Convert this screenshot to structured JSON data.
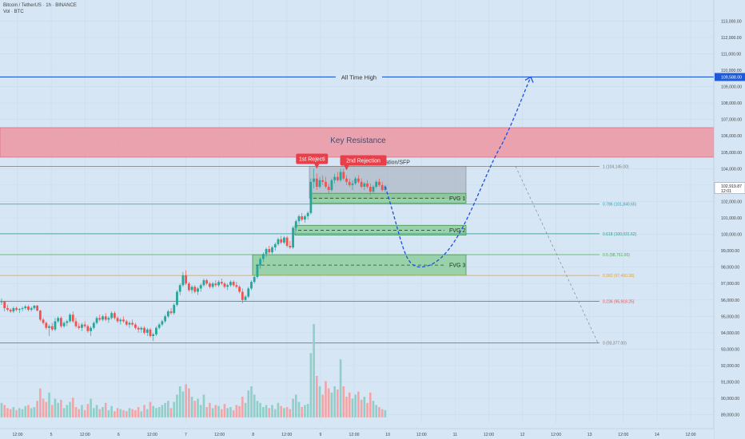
{
  "header": {
    "title": "Bitcoin / TetherUS · 1h · BINANCE",
    "volume_label": "Vol · BTC"
  },
  "annotations": {
    "all_time_high": "All Time High",
    "key_resistance": "Key Resistance",
    "consolidation": "Consolidation/SFP",
    "rejection_1": "1st Rejecti",
    "rejection_2": "2nd Rejection",
    "fvg_1": "FVG 1",
    "fvg_2": "FVG 2",
    "fvg_3": "FVG 3"
  },
  "price_marker": {
    "price": "102,919.87",
    "countdown": "12:01",
    "ath_price": "109,588.00"
  },
  "colors": {
    "background": "#d6e6f5",
    "bull": "#26a69a",
    "bear": "#ef5350",
    "ath_line": "#1e5ad7",
    "resistance_zone": "#f08c96",
    "fvg_zone": "#7fc98a",
    "consolidation_zone": "#a0a8b4",
    "projection": "#1e50e0"
  },
  "chart_data": {
    "type": "candlestick",
    "symbol": "Bitcoin / TetherUS",
    "timeframe": "1h",
    "exchange": "BINANCE",
    "y_axis": {
      "ticks": [
        "113,000.00",
        "112,000.00",
        "111,000.00",
        "110,000.00",
        "109,000.00",
        "108,000.00",
        "107,000.00",
        "106,000.00",
        "105,000.00",
        "104,000.00",
        "103,000.00",
        "102,000.00",
        "101,000.00",
        "100,000.00",
        "99,000.00",
        "98,000.00",
        "97,000.00",
        "96,000.00",
        "95,000.00",
        "94,000.00",
        "93,000.00",
        "92,000.00",
        "91,000.00",
        "90,000.00",
        "89,000.00"
      ]
    },
    "x_axis": {
      "ticks": [
        "12:00",
        "5",
        "12:00",
        "6",
        "12:00",
        "7",
        "12:00",
        "8",
        "12:00",
        "9",
        "12:00",
        "10",
        "12:00",
        "11",
        "12:00",
        "12",
        "12:00",
        "13",
        "12:00",
        "14",
        "12:00"
      ]
    },
    "ath_price": 109588,
    "resistance_zone": [
      104700,
      106500
    ],
    "fib_levels": [
      {
        "ratio": "1",
        "price": 104145,
        "label": "1 (104,145.00)",
        "color": "#7a7a7a"
      },
      {
        "ratio": "0.786",
        "price": 101840.65,
        "label": "0.786 (101,840.65)",
        "color": "#26a6b0"
      },
      {
        "ratio": "0.618",
        "price": 100031.62,
        "label": "0.618 (100,031.62)",
        "color": "#2a9a8a"
      },
      {
        "ratio": "0.5",
        "price": 98761,
        "label": "0.5 (98,761.00)",
        "color": "#4caf50"
      },
      {
        "ratio": "0.382",
        "price": 97490.38,
        "label": "0.382 (97,490.38)",
        "color": "#f0a020"
      },
      {
        "ratio": "0.236",
        "price": 95918.25,
        "label": "0.236 (95,918.25)",
        "color": "#e05050"
      },
      {
        "ratio": "0",
        "price": 93377,
        "label": "0 (93,377.00)",
        "color": "#7a7a7a"
      }
    ],
    "consolidation_zone": [
      102200,
      104150
    ],
    "fvg_zones": [
      {
        "name": "FVG 1",
        "low": 101900,
        "high": 102500
      },
      {
        "name": "FVG 2",
        "low": 99950,
        "high": 100550
      },
      {
        "name": "FVG 3",
        "low": 97500,
        "high": 98750
      }
    ],
    "candles": [
      [
        95900,
        96100,
        95700,
        95900
      ],
      [
        95900,
        95950,
        95300,
        95500
      ],
      [
        95500,
        95700,
        95300,
        95400
      ],
      [
        95400,
        95500,
        95200,
        95300
      ],
      [
        95300,
        95600,
        95200,
        95500
      ],
      [
        95500,
        95600,
        95300,
        95400
      ],
      [
        95400,
        95500,
        95200,
        95450
      ],
      [
        95450,
        95600,
        95300,
        95500
      ],
      [
        95500,
        95700,
        95400,
        95600
      ],
      [
        95600,
        95700,
        95300,
        95400
      ],
      [
        95400,
        95600,
        95300,
        95500
      ],
      [
        95500,
        95700,
        95400,
        95650
      ],
      [
        95650,
        95700,
        95300,
        95350
      ],
      [
        95350,
        95400,
        94700,
        94800
      ],
      [
        94800,
        94900,
        94500,
        94600
      ],
      [
        94600,
        94700,
        94200,
        94300
      ],
      [
        94300,
        94500,
        93800,
        94400
      ],
      [
        94400,
        94600,
        94100,
        94200
      ],
      [
        94200,
        94900,
        94100,
        94700
      ],
      [
        94700,
        95000,
        94600,
        94900
      ],
      [
        94900,
        95000,
        94300,
        94400
      ],
      [
        94400,
        94700,
        94300,
        94600
      ],
      [
        94600,
        94800,
        94400,
        94700
      ],
      [
        94700,
        95200,
        94600,
        95100
      ],
      [
        95100,
        95300,
        94600,
        94700
      ],
      [
        94700,
        94900,
        94300,
        94400
      ],
      [
        94400,
        94600,
        94200,
        94300
      ],
      [
        94300,
        94600,
        94100,
        94500
      ],
      [
        94500,
        94700,
        94300,
        94400
      ],
      [
        94400,
        94500,
        94000,
        94100
      ],
      [
        94100,
        94400,
        93800,
        94300
      ],
      [
        94300,
        94700,
        94200,
        94600
      ],
      [
        94600,
        95000,
        94500,
        94900
      ],
      [
        94900,
        95100,
        94700,
        94800
      ],
      [
        94800,
        95100,
        94700,
        95000
      ],
      [
        95000,
        95200,
        94700,
        94800
      ],
      [
        94800,
        95000,
        94600,
        94900
      ],
      [
        94900,
        95300,
        94800,
        95200
      ],
      [
        95200,
        95300,
        94800,
        94900
      ],
      [
        94900,
        95000,
        94600,
        94700
      ],
      [
        94700,
        94900,
        94500,
        94800
      ],
      [
        94800,
        95000,
        94600,
        94700
      ],
      [
        94700,
        94800,
        94400,
        94500
      ],
      [
        94500,
        94700,
        94300,
        94600
      ],
      [
        94600,
        94800,
        94400,
        94500
      ],
      [
        94500,
        94600,
        94200,
        94300
      ],
      [
        94300,
        94400,
        94000,
        94200
      ],
      [
        94200,
        94400,
        94000,
        94300
      ],
      [
        94300,
        94400,
        93900,
        94000
      ],
      [
        94000,
        94300,
        93800,
        94200
      ],
      [
        94200,
        94300,
        93700,
        93800
      ],
      [
        93800,
        94000,
        93500,
        93900
      ],
      [
        93900,
        94400,
        93800,
        94300
      ],
      [
        94300,
        94600,
        94200,
        94500
      ],
      [
        94500,
        94800,
        94400,
        94700
      ],
      [
        94700,
        95100,
        94600,
        95000
      ],
      [
        95000,
        95400,
        94900,
        95300
      ],
      [
        95300,
        95500,
        95100,
        95200
      ],
      [
        95200,
        95800,
        95100,
        95700
      ],
      [
        95700,
        96600,
        95600,
        96500
      ],
      [
        96500,
        97000,
        96300,
        96900
      ],
      [
        96900,
        97700,
        96800,
        97500
      ],
      [
        97500,
        97800,
        96900,
        97000
      ],
      [
        97000,
        97100,
        96500,
        96600
      ],
      [
        96600,
        96900,
        96400,
        96800
      ],
      [
        96800,
        96900,
        96400,
        96500
      ],
      [
        96500,
        96800,
        96300,
        96700
      ],
      [
        96700,
        97000,
        96500,
        96900
      ],
      [
        96900,
        97300,
        96800,
        97200
      ],
      [
        97200,
        97300,
        96900,
        97000
      ],
      [
        97000,
        97100,
        96700,
        96800
      ],
      [
        96800,
        97100,
        96700,
        97000
      ],
      [
        97000,
        97200,
        96800,
        96900
      ],
      [
        96900,
        97200,
        96800,
        97100
      ],
      [
        97100,
        97300,
        96900,
        97000
      ],
      [
        97000,
        97100,
        96700,
        96800
      ],
      [
        96800,
        97000,
        96600,
        96900
      ],
      [
        96900,
        97200,
        96800,
        97100
      ],
      [
        97100,
        97200,
        96800,
        96900
      ],
      [
        96900,
        97100,
        96700,
        96800
      ],
      [
        96800,
        96900,
        96400,
        96500
      ],
      [
        96500,
        96700,
        95800,
        96000
      ],
      [
        96000,
        96300,
        95900,
        96200
      ],
      [
        96200,
        96800,
        96100,
        96700
      ],
      [
        96700,
        97200,
        96600,
        97100
      ],
      [
        97100,
        97500,
        97000,
        97400
      ],
      [
        97400,
        98200,
        97300,
        98100
      ],
      [
        98100,
        98600,
        97900,
        98500
      ],
      [
        98500,
        98900,
        98300,
        98800
      ],
      [
        98800,
        99200,
        98600,
        99100
      ],
      [
        99100,
        99300,
        98800,
        98900
      ],
      [
        98900,
        99300,
        98800,
        99200
      ],
      [
        99200,
        99500,
        99000,
        99400
      ],
      [
        99400,
        99800,
        99300,
        99700
      ],
      [
        99700,
        99900,
        99400,
        99500
      ],
      [
        99500,
        99900,
        99400,
        99800
      ],
      [
        99800,
        99900,
        99200,
        99300
      ],
      [
        99300,
        99600,
        99100,
        99200
      ],
      [
        99200,
        100500,
        99100,
        100400
      ],
      [
        100400,
        100900,
        100200,
        100800
      ],
      [
        100800,
        101200,
        100600,
        101100
      ],
      [
        101100,
        101300,
        100800,
        100900
      ],
      [
        100900,
        101200,
        100700,
        101100
      ],
      [
        101100,
        101400,
        100900,
        101300
      ],
      [
        101300,
        103400,
        101200,
        103200
      ],
      [
        103200,
        104000,
        102800,
        103400
      ],
      [
        103400,
        103700,
        102700,
        102900
      ],
      [
        102900,
        103500,
        102800,
        103300
      ],
      [
        103300,
        103600,
        103000,
        103200
      ],
      [
        103200,
        103500,
        102800,
        102900
      ],
      [
        102900,
        103100,
        102500,
        102700
      ],
      [
        102700,
        103400,
        102600,
        103300
      ],
      [
        103300,
        103700,
        103100,
        103500
      ],
      [
        103500,
        103800,
        103200,
        103300
      ],
      [
        103300,
        104000,
        103200,
        103800
      ],
      [
        103800,
        104000,
        103300,
        103400
      ],
      [
        103400,
        103600,
        103000,
        103200
      ],
      [
        103200,
        103400,
        102900,
        103000
      ],
      [
        103000,
        103300,
        102700,
        103100
      ],
      [
        103100,
        103500,
        103000,
        103400
      ],
      [
        103400,
        103600,
        103100,
        103200
      ],
      [
        103200,
        103400,
        102800,
        102900
      ],
      [
        102900,
        103200,
        102700,
        103100
      ],
      [
        103100,
        103300,
        102800,
        102900
      ],
      [
        102900,
        103100,
        102400,
        102600
      ],
      [
        102600,
        103000,
        102500,
        102900
      ],
      [
        102900,
        103300,
        102800,
        103200
      ],
      [
        103200,
        103400,
        102900,
        103000
      ],
      [
        103000,
        103200,
        102600,
        102700
      ],
      [
        102700,
        103000,
        102600,
        102919.87
      ]
    ],
    "volume": [
      0.14,
      0.12,
      0.09,
      0.08,
      0.1,
      0.07,
      0.09,
      0.08,
      0.11,
      0.12,
      0.09,
      0.1,
      0.16,
      0.28,
      0.18,
      0.15,
      0.24,
      0.12,
      0.18,
      0.14,
      0.17,
      0.09,
      0.12,
      0.15,
      0.19,
      0.1,
      0.08,
      0.12,
      0.07,
      0.13,
      0.18,
      0.09,
      0.12,
      0.08,
      0.1,
      0.14,
      0.07,
      0.11,
      0.06,
      0.09,
      0.08,
      0.07,
      0.06,
      0.09,
      0.08,
      0.07,
      0.1,
      0.06,
      0.12,
      0.08,
      0.15,
      0.11,
      0.09,
      0.1,
      0.12,
      0.14,
      0.16,
      0.09,
      0.15,
      0.22,
      0.3,
      0.25,
      0.32,
      0.28,
      0.2,
      0.16,
      0.18,
      0.12,
      0.22,
      0.1,
      0.14,
      0.09,
      0.12,
      0.11,
      0.08,
      0.13,
      0.09,
      0.1,
      0.07,
      0.12,
      0.11,
      0.2,
      0.14,
      0.26,
      0.3,
      0.22,
      0.16,
      0.14,
      0.1,
      0.12,
      0.09,
      0.12,
      0.08,
      0.14,
      0.11,
      0.09,
      0.1,
      0.08,
      0.18,
      0.22,
      0.15,
      0.1,
      0.12,
      0.13,
      0.62,
      0.9,
      0.4,
      0.3,
      0.22,
      0.35,
      0.28,
      0.24,
      0.3,
      0.27,
      0.56,
      0.3,
      0.2,
      0.24,
      0.18,
      0.22,
      0.25,
      0.17,
      0.2,
      0.14,
      0.24,
      0.16,
      0.12,
      0.1,
      0.08,
      0.07
    ]
  }
}
